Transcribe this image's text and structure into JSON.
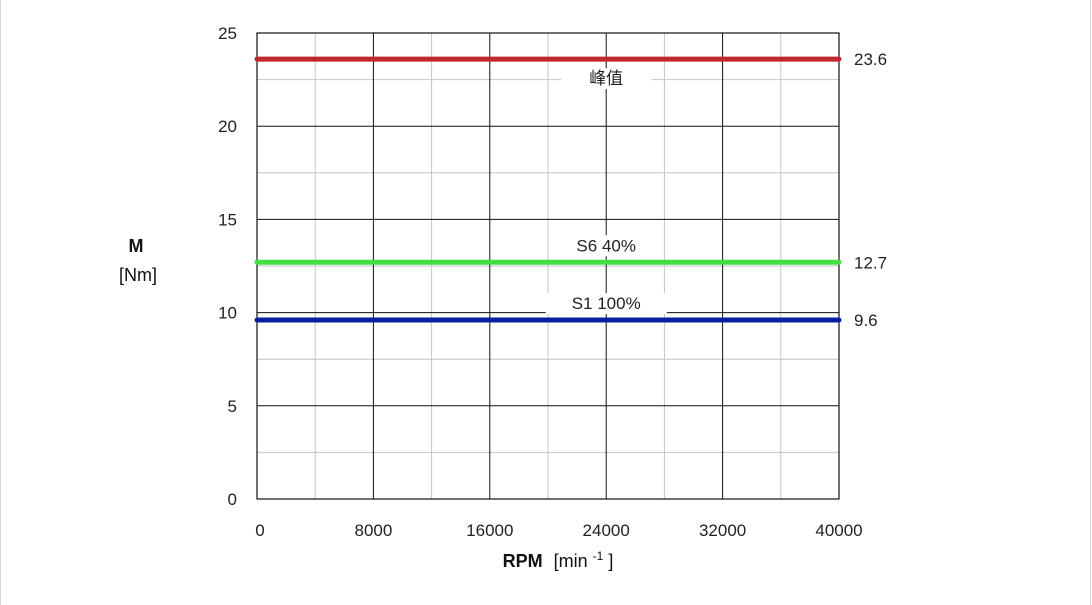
{
  "chart_data": {
    "type": "line",
    "xlabel": "RPM",
    "xunit_base": "[min",
    "xunit_sup": "-1",
    "xunit_close": "]",
    "ylabel": "M",
    "yunit": "[Nm]",
    "xlim": [
      0,
      40000
    ],
    "ylim": [
      0,
      25
    ],
    "x_ticks": [
      0,
      8000,
      16000,
      24000,
      32000,
      40000
    ],
    "x_minor_step": 4000,
    "y_ticks": [
      0,
      5,
      10,
      15,
      20,
      25
    ],
    "y_minor_step": 2.5,
    "grid": true,
    "series": [
      {
        "name": "峰值",
        "value_label": "23.6",
        "color": "#c4262e",
        "x": [
          0,
          40000
        ],
        "y": [
          23.6,
          23.6
        ],
        "label_x": 24000,
        "label_pos": "below"
      },
      {
        "name": "S6 40%",
        "value_label": "12.7",
        "color": "#3fe03f",
        "x": [
          0,
          40000
        ],
        "y": [
          12.7,
          12.7
        ],
        "label_x": 24000,
        "label_pos": "above"
      },
      {
        "name": "S1 100%",
        "value_label": "9.6",
        "color": "#0a1f9e",
        "x": [
          0,
          40000
        ],
        "y": [
          9.6,
          9.6
        ],
        "label_x": 24000,
        "label_pos": "above"
      }
    ]
  }
}
